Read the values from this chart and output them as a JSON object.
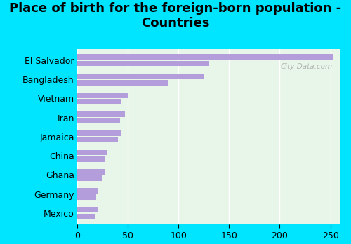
{
  "title": "Place of birth for the foreign-born population -\nCountries",
  "categories": [
    "El Salvador",
    "Bangladesh",
    "Vietnam",
    "Iran",
    "Jamaica",
    "China",
    "Ghana",
    "Germany",
    "Mexico"
  ],
  "values1": [
    253,
    125,
    50,
    47,
    44,
    30,
    27,
    20,
    20
  ],
  "values2": [
    130,
    90,
    43,
    42,
    40,
    27,
    24,
    19,
    18
  ],
  "bar_color": "#b39ddb",
  "background_outer": "#00e5ff",
  "background_inner_left": "#c8e6c9",
  "background_inner_right": "#f1f8e9",
  "xlim": [
    0,
    260
  ],
  "xticks": [
    0,
    50,
    100,
    150,
    200,
    250
  ],
  "title_fontsize": 13,
  "label_fontsize": 9,
  "tick_fontsize": 9,
  "watermark": "City-Data.com"
}
